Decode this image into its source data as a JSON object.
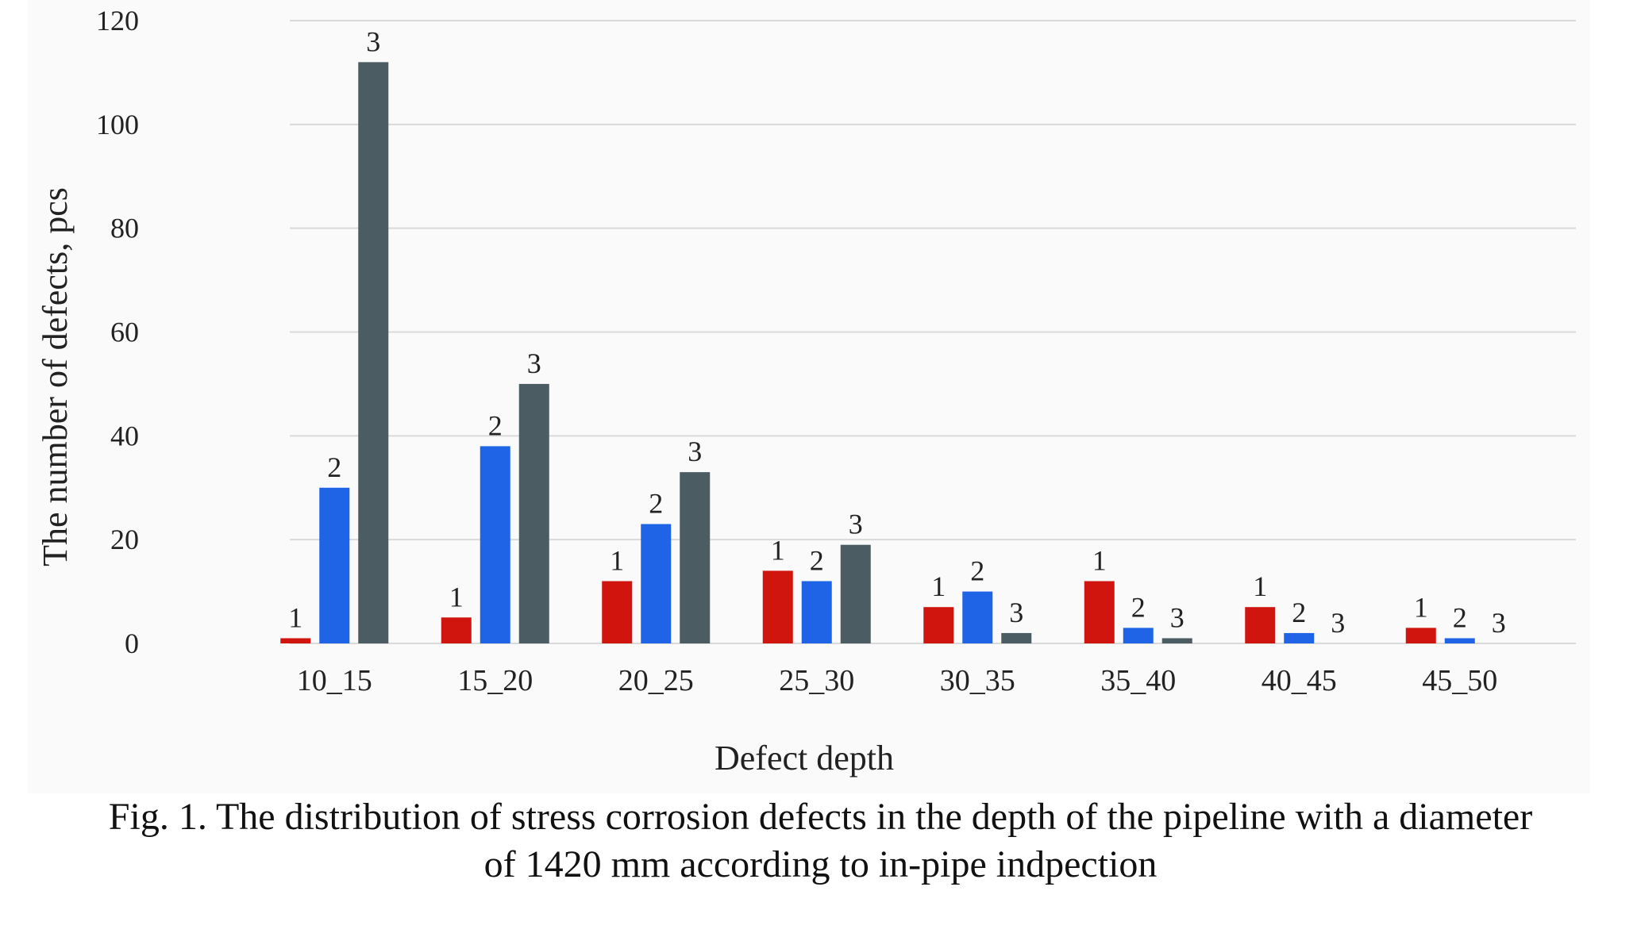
{
  "chart_data": {
    "type": "bar",
    "title": "",
    "xlabel": "Defect depth",
    "ylabel": "The number of defects, pcs",
    "ylim": [
      0,
      120
    ],
    "yticks": [
      0,
      20,
      40,
      60,
      80,
      100,
      120
    ],
    "grid": true,
    "legend": "none",
    "categories": [
      "10_15",
      "15_20",
      "20_25",
      "25_30",
      "30_35",
      "35_40",
      "40_45",
      "45_50"
    ],
    "series": [
      {
        "label": "1",
        "color": "#d0140e",
        "values": [
          1,
          5,
          12,
          14,
          7,
          12,
          7,
          3
        ]
      },
      {
        "label": "2",
        "color": "#1f64e6",
        "values": [
          30,
          38,
          23,
          12,
          10,
          3,
          2,
          1
        ]
      },
      {
        "label": "3",
        "color": "#4b5c62",
        "values": [
          112,
          50,
          33,
          19,
          2,
          1,
          0,
          0
        ]
      }
    ]
  },
  "caption": {
    "line1": "Fig. 1. The distribution of stress corrosion defects in the depth of the pipeline with a diameter",
    "line2": "of 1420 mm according to in-pipe indpection"
  }
}
